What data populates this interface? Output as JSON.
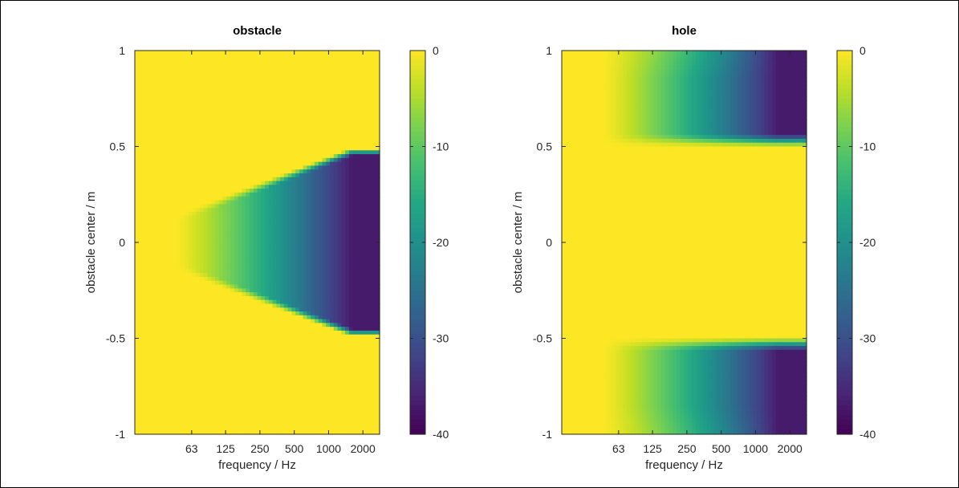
{
  "chart_data": [
    {
      "type": "heatmap",
      "title": "obstacle",
      "xlabel": "frequency / Hz",
      "ylabel": "obstacle center / m",
      "x_scale": "log",
      "xlim": [
        20,
        2800
      ],
      "ylim": [
        -1,
        1
      ],
      "x_ticks": [
        63,
        125,
        250,
        500,
        1000,
        2000
      ],
      "y_ticks": [
        -1,
        -0.5,
        0,
        0.5,
        1
      ],
      "y_tick_labels": [
        "-1",
        "-0.5",
        "0",
        "0.5",
        "1"
      ],
      "colorbar": {
        "range": [
          -40,
          0
        ],
        "ticks": [
          0,
          -10,
          -20,
          -30,
          -40
        ],
        "tick_labels": [
          "0",
          "-10",
          "-20",
          "-30",
          "-40"
        ],
        "colormap": "viridis"
      },
      "region": {
        "kind": "obstacle",
        "center_half_width": 0.45,
        "min_level_db": -37
      }
    },
    {
      "type": "heatmap",
      "title": "hole",
      "xlabel": "frequency / Hz",
      "ylabel": "obstacle center / m",
      "x_scale": "log",
      "xlim": [
        20,
        2800
      ],
      "ylim": [
        -1,
        1
      ],
      "x_ticks": [
        63,
        125,
        250,
        500,
        1000,
        2000
      ],
      "y_ticks": [
        -1,
        -0.5,
        0,
        0.5,
        1
      ],
      "y_tick_labels": [
        "-1",
        "-0.5",
        "0",
        "0.5",
        "1"
      ],
      "colorbar": {
        "range": [
          -40,
          0
        ],
        "ticks": [
          0,
          -10,
          -20,
          -30,
          -40
        ],
        "tick_labels": [
          "0",
          "-10",
          "-20",
          "-30",
          "-40"
        ],
        "colormap": "viridis"
      },
      "region": {
        "kind": "hole",
        "center_half_width": 0.5,
        "min_level_db": -37
      }
    }
  ]
}
